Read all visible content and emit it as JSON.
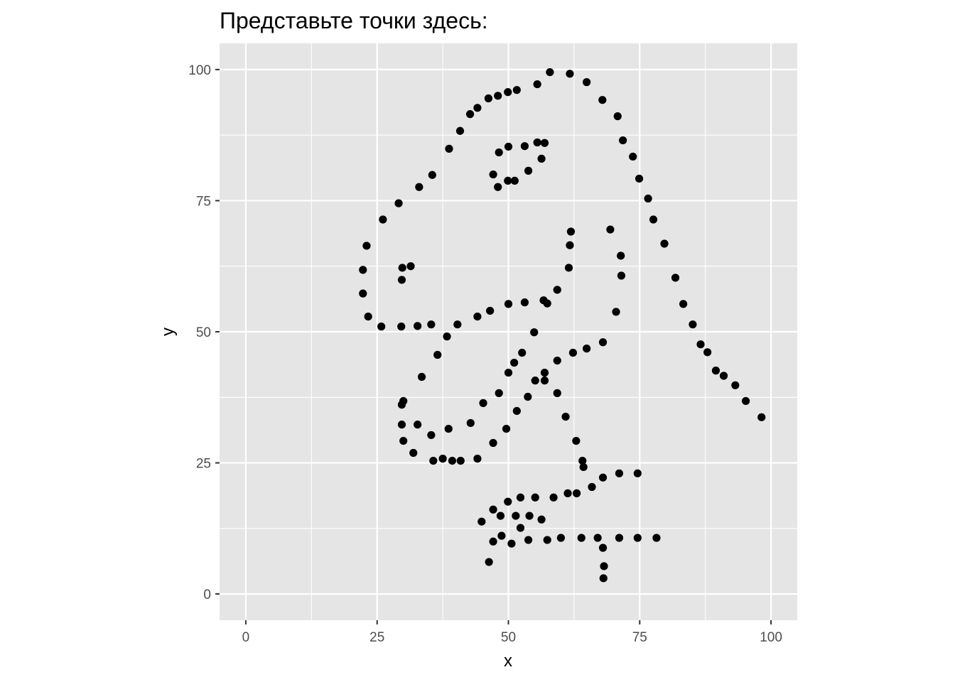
{
  "chart_data": {
    "type": "scatter",
    "title": "Представьте точки здесь:",
    "xlabel": "x",
    "ylabel": "y",
    "xlim": [
      -5,
      105
    ],
    "ylim": [
      -5,
      105
    ],
    "x_ticks": [
      0,
      25,
      50,
      75,
      100
    ],
    "y_ticks": [
      0,
      25,
      50,
      75,
      100
    ],
    "x_tick_labels": [
      "0",
      "25",
      "50",
      "75",
      "100"
    ],
    "y_tick_labels": [
      "0",
      "25",
      "50",
      "75",
      "100"
    ],
    "grid": true,
    "legend": "none",
    "colors": {
      "panel": "#e5e5e5",
      "grid": "#ffffff",
      "point": "#000000"
    },
    "points": [
      {
        "x": 57.9,
        "y": 99.5
      },
      {
        "x": 61.7,
        "y": 99.2
      },
      {
        "x": 64.9,
        "y": 97.6
      },
      {
        "x": 55.5,
        "y": 97.2
      },
      {
        "x": 51.6,
        "y": 96.1
      },
      {
        "x": 49.9,
        "y": 95.7
      },
      {
        "x": 48.0,
        "y": 95.0
      },
      {
        "x": 46.2,
        "y": 94.5
      },
      {
        "x": 44.1,
        "y": 92.7
      },
      {
        "x": 42.7,
        "y": 91.5
      },
      {
        "x": 40.8,
        "y": 88.3
      },
      {
        "x": 38.7,
        "y": 84.9
      },
      {
        "x": 35.5,
        "y": 79.9
      },
      {
        "x": 33.0,
        "y": 77.6
      },
      {
        "x": 29.1,
        "y": 74.5
      },
      {
        "x": 26.1,
        "y": 71.4
      },
      {
        "x": 23.0,
        "y": 66.4
      },
      {
        "x": 22.3,
        "y": 61.8
      },
      {
        "x": 22.3,
        "y": 57.3
      },
      {
        "x": 23.3,
        "y": 52.9
      },
      {
        "x": 25.8,
        "y": 51.0
      },
      {
        "x": 29.6,
        "y": 51.0
      },
      {
        "x": 32.7,
        "y": 51.1
      },
      {
        "x": 35.3,
        "y": 51.4
      },
      {
        "x": 38.3,
        "y": 49.1
      },
      {
        "x": 40.3,
        "y": 51.4
      },
      {
        "x": 44.1,
        "y": 52.9
      },
      {
        "x": 46.5,
        "y": 54.0
      },
      {
        "x": 50.0,
        "y": 55.3
      },
      {
        "x": 53.1,
        "y": 55.6
      },
      {
        "x": 56.7,
        "y": 56.0
      },
      {
        "x": 57.4,
        "y": 55.4
      },
      {
        "x": 59.3,
        "y": 58.0
      },
      {
        "x": 61.5,
        "y": 62.2
      },
      {
        "x": 61.7,
        "y": 66.5
      },
      {
        "x": 61.9,
        "y": 69.1
      },
      {
        "x": 29.7,
        "y": 59.9
      },
      {
        "x": 29.8,
        "y": 62.2
      },
      {
        "x": 31.4,
        "y": 62.5
      },
      {
        "x": 47.1,
        "y": 80.0
      },
      {
        "x": 48.0,
        "y": 77.6
      },
      {
        "x": 49.9,
        "y": 78.8
      },
      {
        "x": 51.2,
        "y": 78.8
      },
      {
        "x": 53.8,
        "y": 80.7
      },
      {
        "x": 56.3,
        "y": 83.0
      },
      {
        "x": 56.9,
        "y": 86.0
      },
      {
        "x": 55.5,
        "y": 86.1
      },
      {
        "x": 53.1,
        "y": 85.4
      },
      {
        "x": 50.0,
        "y": 85.3
      },
      {
        "x": 48.2,
        "y": 84.2
      },
      {
        "x": 67.9,
        "y": 94.2
      },
      {
        "x": 70.8,
        "y": 91.1
      },
      {
        "x": 71.8,
        "y": 86.5
      },
      {
        "x": 73.7,
        "y": 83.4
      },
      {
        "x": 74.9,
        "y": 79.2
      },
      {
        "x": 76.6,
        "y": 75.4
      },
      {
        "x": 77.6,
        "y": 71.4
      },
      {
        "x": 79.7,
        "y": 66.8
      },
      {
        "x": 81.8,
        "y": 60.3
      },
      {
        "x": 83.3,
        "y": 55.3
      },
      {
        "x": 85.1,
        "y": 51.4
      },
      {
        "x": 86.6,
        "y": 47.6
      },
      {
        "x": 87.9,
        "y": 46.1
      },
      {
        "x": 89.5,
        "y": 42.6
      },
      {
        "x": 91.0,
        "y": 41.6
      },
      {
        "x": 93.2,
        "y": 39.8
      },
      {
        "x": 95.2,
        "y": 36.8
      },
      {
        "x": 98.2,
        "y": 33.7
      },
      {
        "x": 69.4,
        "y": 69.5
      },
      {
        "x": 71.4,
        "y": 64.5
      },
      {
        "x": 71.5,
        "y": 60.7
      },
      {
        "x": 70.5,
        "y": 53.8
      },
      {
        "x": 54.9,
        "y": 49.9
      },
      {
        "x": 52.6,
        "y": 46.0
      },
      {
        "x": 51.1,
        "y": 44.1
      },
      {
        "x": 50.0,
        "y": 42.2
      },
      {
        "x": 48.2,
        "y": 38.3
      },
      {
        "x": 45.2,
        "y": 36.4
      },
      {
        "x": 42.8,
        "y": 32.6
      },
      {
        "x": 38.6,
        "y": 31.5
      },
      {
        "x": 36.5,
        "y": 45.6
      },
      {
        "x": 33.5,
        "y": 41.4
      },
      {
        "x": 30.0,
        "y": 36.8
      },
      {
        "x": 29.7,
        "y": 36.1
      },
      {
        "x": 29.7,
        "y": 32.3
      },
      {
        "x": 32.7,
        "y": 32.3
      },
      {
        "x": 30.0,
        "y": 29.2
      },
      {
        "x": 35.3,
        "y": 30.3
      },
      {
        "x": 31.9,
        "y": 26.9
      },
      {
        "x": 35.7,
        "y": 25.4
      },
      {
        "x": 37.5,
        "y": 25.8
      },
      {
        "x": 39.3,
        "y": 25.4
      },
      {
        "x": 40.9,
        "y": 25.4
      },
      {
        "x": 44.1,
        "y": 25.8
      },
      {
        "x": 47.1,
        "y": 28.8
      },
      {
        "x": 49.6,
        "y": 31.5
      },
      {
        "x": 51.6,
        "y": 34.9
      },
      {
        "x": 53.7,
        "y": 37.6
      },
      {
        "x": 55.1,
        "y": 40.7
      },
      {
        "x": 56.9,
        "y": 40.7
      },
      {
        "x": 56.9,
        "y": 42.2
      },
      {
        "x": 59.3,
        "y": 44.5
      },
      {
        "x": 59.3,
        "y": 38.3
      },
      {
        "x": 60.9,
        "y": 33.8
      },
      {
        "x": 62.3,
        "y": 46.0
      },
      {
        "x": 64.9,
        "y": 46.8
      },
      {
        "x": 68.0,
        "y": 48.0
      },
      {
        "x": 62.9,
        "y": 29.2
      },
      {
        "x": 64.1,
        "y": 25.4
      },
      {
        "x": 64.3,
        "y": 24.2
      },
      {
        "x": 65.9,
        "y": 20.4
      },
      {
        "x": 68.0,
        "y": 22.2
      },
      {
        "x": 71.1,
        "y": 23.0
      },
      {
        "x": 74.6,
        "y": 23.0
      },
      {
        "x": 63.0,
        "y": 19.2
      },
      {
        "x": 61.3,
        "y": 19.2
      },
      {
        "x": 58.6,
        "y": 18.4
      },
      {
        "x": 55.1,
        "y": 18.4
      },
      {
        "x": 52.3,
        "y": 18.4
      },
      {
        "x": 49.9,
        "y": 17.6
      },
      {
        "x": 47.1,
        "y": 16.1
      },
      {
        "x": 48.5,
        "y": 14.9
      },
      {
        "x": 51.4,
        "y": 14.9
      },
      {
        "x": 54.0,
        "y": 14.9
      },
      {
        "x": 56.3,
        "y": 14.2
      },
      {
        "x": 44.9,
        "y": 13.8
      },
      {
        "x": 52.3,
        "y": 12.6
      },
      {
        "x": 47.1,
        "y": 10.0
      },
      {
        "x": 48.7,
        "y": 11.1
      },
      {
        "x": 50.6,
        "y": 9.6
      },
      {
        "x": 53.8,
        "y": 10.3
      },
      {
        "x": 57.4,
        "y": 10.3
      },
      {
        "x": 60.0,
        "y": 10.7
      },
      {
        "x": 63.9,
        "y": 10.7
      },
      {
        "x": 67.0,
        "y": 10.7
      },
      {
        "x": 71.1,
        "y": 10.7
      },
      {
        "x": 74.6,
        "y": 10.7
      },
      {
        "x": 78.2,
        "y": 10.7
      },
      {
        "x": 68.0,
        "y": 8.8
      },
      {
        "x": 46.3,
        "y": 6.1
      },
      {
        "x": 68.2,
        "y": 5.3
      },
      {
        "x": 68.1,
        "y": 3.0
      }
    ]
  }
}
